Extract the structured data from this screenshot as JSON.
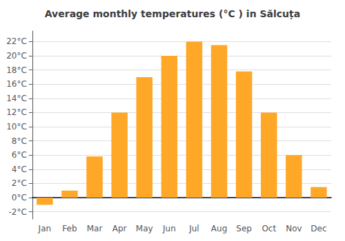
{
  "chart_data": {
    "type": "bar",
    "title": "Average monthly temperatures (°C ) in Sălcuța",
    "categories": [
      "Jan",
      "Feb",
      "Mar",
      "Apr",
      "May",
      "Jun",
      "Jul",
      "Aug",
      "Sep",
      "Oct",
      "Nov",
      "Dec"
    ],
    "values": [
      -1.0,
      1.0,
      5.8,
      12.0,
      17.0,
      20.0,
      22.0,
      21.5,
      17.8,
      12.0,
      6.0,
      1.5
    ],
    "color": "#FFA726",
    "ylim": [
      -3,
      23.5
    ],
    "yticks": [
      {
        "value": -2,
        "label": "-2°C"
      },
      {
        "value": 0,
        "label": "0°C"
      },
      {
        "value": 2,
        "label": "2°C"
      },
      {
        "value": 4,
        "label": "4°C"
      },
      {
        "value": 6,
        "label": "6°C"
      },
      {
        "value": 8,
        "label": "8°C"
      },
      {
        "value": 10,
        "label": "10°C"
      },
      {
        "value": 12,
        "label": "12°C"
      },
      {
        "value": 14,
        "label": "14°C"
      },
      {
        "value": 16,
        "label": "16°C"
      },
      {
        "value": 18,
        "label": "18°C"
      },
      {
        "value": 20,
        "label": "20°C"
      },
      {
        "value": 22,
        "label": "22°C"
      }
    ],
    "grid": true
  }
}
